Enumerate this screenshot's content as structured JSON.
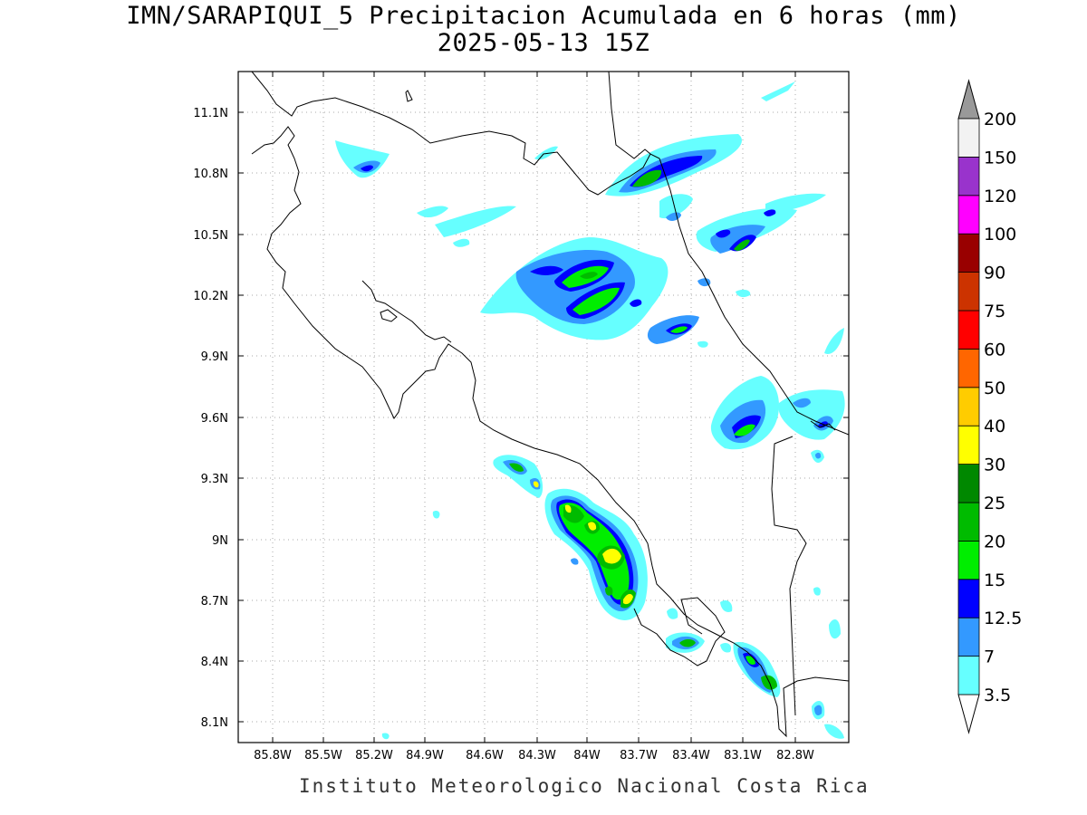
{
  "title_line1": "IMN/SARAPIQUI_5 Precipitacion Acumulada en 6 horas (mm)",
  "title_line2": "2025-05-13 15Z",
  "footer": "Instituto Meteorologico Nacional Costa Rica",
  "map": {
    "lon_labels": [
      "85.8W",
      "85.5W",
      "85.2W",
      "84.9W",
      "84.6W",
      "84.3W",
      "84W",
      "83.7W",
      "83.4W",
      "83.1W",
      "82.8W"
    ],
    "lat_labels": [
      "11.1N",
      "10.8N",
      "10.5N",
      "10.2N",
      "9.9N",
      "9.6N",
      "9.3N",
      "9N",
      "8.7N",
      "8.4N",
      "8.1N"
    ]
  },
  "colorbar": {
    "levels": [
      "3.5",
      "7",
      "12.5",
      "15",
      "20",
      "25",
      "30",
      "40",
      "50",
      "60",
      "75",
      "90",
      "100",
      "120",
      "150",
      "200"
    ],
    "colors": [
      "#66ffff",
      "#3399ff",
      "#0000ff",
      "#00ee00",
      "#00bb00",
      "#008800",
      "#ffff00",
      "#ffcc00",
      "#ff6600",
      "#ff0000",
      "#cc3300",
      "#990000",
      "#ff00ff",
      "#9933cc",
      "#f2f2f2",
      "#999999"
    ]
  },
  "colors": {
    "c35": "#66ffff",
    "c7": "#3399ff",
    "c125": "#0000ff",
    "c15": "#00ee00",
    "c20": "#00bb00",
    "c25": "#008800",
    "c30": "#ffff00"
  }
}
